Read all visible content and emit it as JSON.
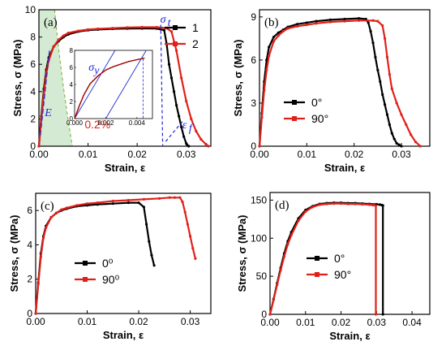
{
  "chart_data": [
    {
      "id": "a",
      "type": "line",
      "panel_label": "(a)",
      "xlabel": "Strain, ε",
      "ylabel": "Stress, σ (MPa)",
      "xlim": [
        0,
        0.035
      ],
      "ylim": [
        0,
        10
      ],
      "xticks": [
        "0.00",
        "0.01",
        "0.02",
        "0.03"
      ],
      "xtick_values": [
        0,
        0.01,
        0.02,
        0.03
      ],
      "yticks": [
        "0",
        "2",
        "4",
        "6",
        "8",
        "10"
      ],
      "ytick_values": [
        0,
        2,
        4,
        6,
        8,
        10
      ],
      "legend_position": "top-right",
      "series": [
        {
          "name": "1",
          "color": "#000000",
          "x": [
            0,
            0.0005,
            0.001,
            0.0015,
            0.002,
            0.003,
            0.004,
            0.005,
            0.006,
            0.008,
            0.01,
            0.012,
            0.015,
            0.018,
            0.021,
            0.024,
            0.0255,
            0.026,
            0.0265,
            0.027,
            0.0275,
            0.028,
            0.0285,
            0.029,
            0.0295,
            0.03,
            0.0305
          ],
          "y": [
            0,
            2.2,
            4.2,
            5.6,
            6.5,
            7.3,
            7.7,
            8.0,
            8.2,
            8.4,
            8.5,
            8.55,
            8.6,
            8.62,
            8.63,
            8.62,
            8.5,
            7.5,
            6.0,
            5.0,
            4.0,
            3.0,
            2.2,
            1.4,
            0.7,
            0.2,
            0
          ]
        },
        {
          "name": "2",
          "color": "#e0211b",
          "x": [
            0,
            0.0005,
            0.001,
            0.0015,
            0.002,
            0.003,
            0.004,
            0.005,
            0.006,
            0.008,
            0.01,
            0.012,
            0.015,
            0.018,
            0.021,
            0.024,
            0.026,
            0.027,
            0.028,
            0.029,
            0.03,
            0.031,
            0.032,
            0.033,
            0.034,
            0.0345
          ],
          "y": [
            0,
            2.0,
            3.9,
            5.3,
            6.3,
            7.3,
            7.8,
            8.1,
            8.3,
            8.45,
            8.55,
            8.6,
            8.65,
            8.7,
            8.72,
            8.72,
            8.65,
            8.4,
            7.0,
            5.0,
            3.3,
            2.0,
            1.1,
            0.5,
            0.15,
            0
          ]
        }
      ],
      "annotations": {
        "sigma_t": "σ",
        "sigma_t_sub": "t",
        "modulus": "E",
        "epsilon_f": "ε",
        "epsilon_f_sub": "f",
        "offset": "0.2%",
        "inset_sigma_y": "σ",
        "inset_sigma_y_sub": "y"
      },
      "inset": {
        "xlim": [
          0,
          0.005
        ],
        "ylim": [
          0,
          8
        ],
        "xticks": [
          "0.000",
          "0.002",
          "0.004"
        ],
        "xtick_values": [
          0,
          0.002,
          0.004
        ],
        "yticks": [
          "0",
          "2",
          "4",
          "6",
          "8"
        ],
        "ytick_values": [
          0,
          2,
          4,
          6,
          8
        ],
        "curve_x": [
          0,
          0.0003,
          0.0006,
          0.001,
          0.0015,
          0.002,
          0.0025,
          0.003,
          0.0035,
          0.004,
          0.0045
        ],
        "curve_y": [
          0,
          1.5,
          2.8,
          4.1,
          5.0,
          5.7,
          6.1,
          6.4,
          6.7,
          6.9,
          7.1
        ]
      }
    },
    {
      "id": "b",
      "type": "line",
      "panel_label": "(b)",
      "xlabel": "Strain, ε",
      "ylabel": "Stress, σ (MPa)",
      "xlim": [
        0,
        0.036
      ],
      "ylim": [
        0,
        9.5
      ],
      "xticks": [
        "0.00",
        "0.01",
        "0.02",
        "0.03"
      ],
      "xtick_values": [
        0,
        0.01,
        0.02,
        0.03
      ],
      "yticks": [
        "0",
        "3",
        "6",
        "9"
      ],
      "ytick_values": [
        0,
        3,
        6,
        9
      ],
      "legend_position": "bottom-left",
      "series": [
        {
          "name": "0°",
          "color": "#000000",
          "x": [
            0,
            0.0005,
            0.001,
            0.0015,
            0.002,
            0.003,
            0.004,
            0.005,
            0.006,
            0.008,
            0.01,
            0.012,
            0.015,
            0.018,
            0.021,
            0.0225,
            0.023,
            0.0235,
            0.024,
            0.0245,
            0.025,
            0.0255,
            0.026,
            0.0265,
            0.027,
            0.0275,
            0.028,
            0.0285,
            0.029,
            0.0295,
            0.03
          ],
          "y": [
            0,
            2.3,
            4.5,
            6.0,
            6.9,
            7.6,
            7.9,
            8.1,
            8.3,
            8.5,
            8.6,
            8.7,
            8.8,
            8.85,
            8.9,
            8.85,
            8.6,
            8.0,
            7.2,
            6.2,
            5.3,
            4.5,
            3.6,
            2.9,
            2.2,
            1.5,
            0.9,
            0.5,
            0.2,
            0.1,
            0
          ]
        },
        {
          "name": "90°",
          "color": "#e0211b",
          "x": [
            0,
            0.0005,
            0.001,
            0.0015,
            0.002,
            0.003,
            0.004,
            0.005,
            0.006,
            0.008,
            0.01,
            0.012,
            0.015,
            0.018,
            0.021,
            0.024,
            0.025,
            0.026,
            0.0265,
            0.027,
            0.0275,
            0.028,
            0.029,
            0.03,
            0.031,
            0.032,
            0.033,
            0.034
          ],
          "y": [
            0,
            2.0,
            3.9,
            5.3,
            6.3,
            7.3,
            7.7,
            8.0,
            8.2,
            8.35,
            8.45,
            8.55,
            8.65,
            8.7,
            8.75,
            8.75,
            8.7,
            8.4,
            7.5,
            6.2,
            5.0,
            4.0,
            3.0,
            2.2,
            1.5,
            0.8,
            0.3,
            0
          ]
        }
      ],
      "annotations": {}
    },
    {
      "id": "c",
      "type": "line",
      "panel_label": "(c)",
      "xlabel": "Strain, ε",
      "ylabel": "Stress, σ (MPa)",
      "xlim": [
        0,
        0.034
      ],
      "ylim": [
        0,
        7
      ],
      "xticks": [
        "0.00",
        "0.01",
        "0.02",
        "0.03"
      ],
      "xtick_values": [
        0,
        0.01,
        0.02,
        0.03
      ],
      "yticks": [
        "0",
        "2",
        "4",
        "6"
      ],
      "ytick_values": [
        0,
        2,
        4,
        6
      ],
      "legend_position": "bottom-center",
      "series": [
        {
          "name": "0⁰",
          "color": "#000000",
          "x": [
            0,
            0.0005,
            0.001,
            0.0015,
            0.002,
            0.003,
            0.004,
            0.005,
            0.006,
            0.008,
            0.01,
            0.012,
            0.015,
            0.018,
            0.02,
            0.021,
            0.0215,
            0.022,
            0.0225,
            0.023
          ],
          "y": [
            0,
            1.8,
            3.5,
            4.5,
            5.1,
            5.6,
            5.85,
            6.0,
            6.1,
            6.25,
            6.3,
            6.35,
            6.4,
            6.45,
            6.45,
            6.2,
            5.2,
            4.2,
            3.4,
            2.8
          ]
        },
        {
          "name": "90⁰",
          "color": "#e0211b",
          "x": [
            0,
            0.0005,
            0.001,
            0.0015,
            0.002,
            0.003,
            0.004,
            0.005,
            0.006,
            0.008,
            0.01,
            0.012,
            0.015,
            0.018,
            0.021,
            0.024,
            0.026,
            0.027,
            0.028,
            0.0285,
            0.029,
            0.0295,
            0.03,
            0.0305,
            0.031
          ],
          "y": [
            0,
            1.7,
            3.3,
            4.4,
            5.0,
            5.6,
            5.85,
            6.05,
            6.15,
            6.3,
            6.4,
            6.45,
            6.55,
            6.6,
            6.65,
            6.7,
            6.75,
            6.75,
            6.75,
            6.5,
            5.9,
            5.2,
            4.5,
            3.8,
            3.2
          ]
        }
      ],
      "annotations": {}
    },
    {
      "id": "d",
      "type": "line",
      "panel_label": "(d)",
      "xlabel": "Strain, ε",
      "ylabel": "Stress, σ (MPa)",
      "xlim": [
        0,
        0.045
      ],
      "ylim": [
        0,
        160
      ],
      "xticks": [
        "0.00",
        "0.01",
        "0.02",
        "0.03",
        "0.04"
      ],
      "xtick_values": [
        0,
        0.01,
        0.02,
        0.03,
        0.04
      ],
      "yticks": [
        "0",
        "50",
        "100",
        "150"
      ],
      "ytick_values": [
        0,
        50,
        100,
        150
      ],
      "legend_position": "bottom-right",
      "series": [
        {
          "name": "0°",
          "color": "#000000",
          "x": [
            0,
            0.001,
            0.002,
            0.003,
            0.004,
            0.005,
            0.006,
            0.008,
            0.01,
            0.012,
            0.014,
            0.016,
            0.018,
            0.02,
            0.022,
            0.024,
            0.026,
            0.028,
            0.03,
            0.031,
            0.0315,
            0.0318,
            0.0318
          ],
          "y": [
            0,
            20,
            41,
            61,
            80,
            96,
            108,
            126,
            137,
            142,
            145,
            146,
            146.5,
            146.5,
            146,
            146,
            145.5,
            145,
            144.5,
            144,
            143.5,
            143,
            0
          ]
        },
        {
          "name": "90°",
          "color": "#e0211b",
          "x": [
            0,
            0.001,
            0.002,
            0.003,
            0.004,
            0.005,
            0.006,
            0.008,
            0.01,
            0.012,
            0.014,
            0.016,
            0.018,
            0.02,
            0.022,
            0.024,
            0.026,
            0.028,
            0.029,
            0.0298,
            0.0298
          ],
          "y": [
            0,
            19,
            39,
            58,
            76,
            92,
            104,
            123,
            135,
            141,
            144,
            145,
            145.5,
            145.5,
            145,
            145,
            144.5,
            144,
            143.5,
            143,
            0
          ]
        }
      ],
      "annotations": {}
    }
  ]
}
